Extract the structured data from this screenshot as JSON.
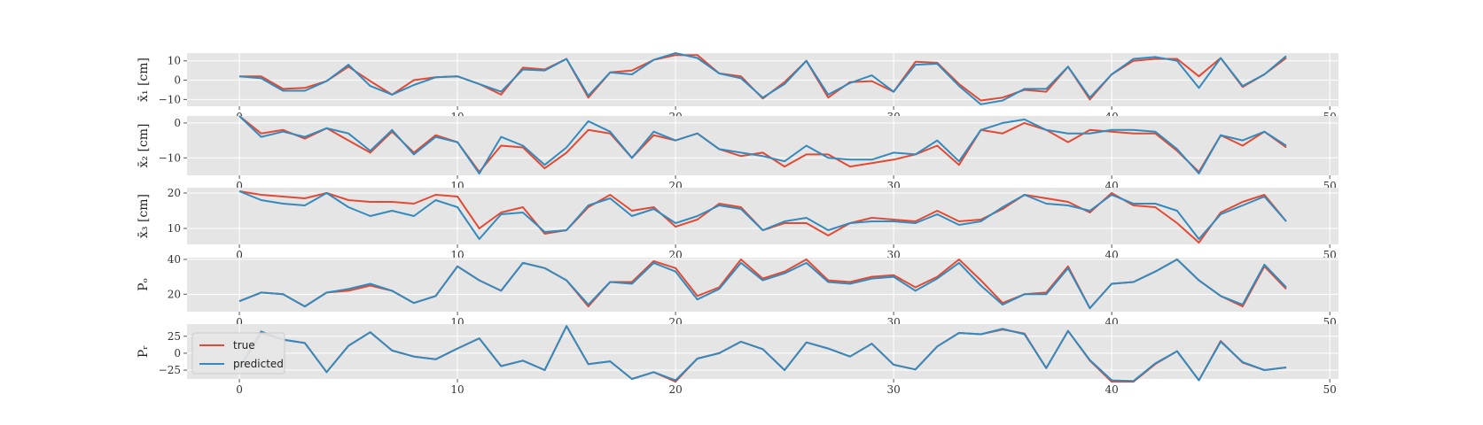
{
  "chart_data": {
    "type": "line",
    "xlim": [
      -2.4,
      50.4
    ],
    "xticks": [
      0,
      10,
      20,
      30,
      40,
      50
    ],
    "x": [
      0,
      1,
      2,
      3,
      4,
      5,
      6,
      7,
      8,
      9,
      10,
      11,
      12,
      13,
      14,
      15,
      16,
      17,
      18,
      19,
      20,
      21,
      22,
      23,
      24,
      25,
      26,
      27,
      28,
      29,
      30,
      31,
      32,
      33,
      34,
      35,
      36,
      37,
      38,
      39,
      40,
      41,
      42,
      43,
      44,
      45,
      46,
      47,
      48
    ],
    "grid": true,
    "legend": {
      "placement": "lower-left",
      "panel": 5,
      "entries": [
        "true",
        "predicted"
      ]
    },
    "colors": {
      "true": "#E24A33",
      "predicted": "#348ABD",
      "panel_bg": "#E5E5E5",
      "grid": "#FFFFFF"
    },
    "panels": [
      {
        "ylabel": "x̄₁ [cm]",
        "ylim": [
          -13.5,
          14
        ],
        "yticks": [
          -10,
          0,
          10
        ],
        "series": [
          {
            "name": "true",
            "values": [
              2,
              2,
              -4.5,
              -4,
              -0.5,
              7,
              -0.5,
              -7.5,
              0,
              1.5,
              2,
              -2,
              -7.5,
              6.5,
              5.5,
              11,
              -9,
              4,
              5,
              10.5,
              13,
              13,
              3.5,
              2,
              -9.5,
              -1,
              10,
              -9,
              -1,
              -0.5,
              -6,
              9.5,
              9,
              -2,
              -10.5,
              -9,
              -5,
              -6,
              7,
              -10,
              3,
              10,
              11,
              11,
              2,
              11.5,
              -3.5,
              3,
              11.5
            ]
          },
          {
            "name": "predicted",
            "values": [
              2,
              1,
              -5.5,
              -5.5,
              -0.5,
              8,
              -3,
              -7.5,
              -2.5,
              1.5,
              2,
              -2,
              -6,
              5.5,
              5,
              11,
              -8,
              4,
              3,
              10.5,
              14,
              11.5,
              3.5,
              1,
              -9,
              -2,
              10,
              -7.5,
              -1.5,
              2.5,
              -6,
              8,
              8.5,
              -3,
              -12.5,
              -10.5,
              -4.5,
              -4.5,
              7,
              -9,
              3,
              11,
              12,
              10,
              -4,
              11.5,
              -3,
              3,
              12.5
            ]
          }
        ]
      },
      {
        "ylabel": "x̄₂ [cm]",
        "ylim": [
          -15,
          2
        ],
        "yticks": [
          -10,
          0
        ],
        "series": [
          {
            "name": "true",
            "values": [
              2,
              -3,
              -2,
              -4.5,
              -1.5,
              -5,
              -8.5,
              -2.5,
              -8.5,
              -3.5,
              -5.5,
              -14,
              -6.5,
              -7,
              -13,
              -8.5,
              -2,
              -3,
              -10,
              -3.5,
              -5,
              -3,
              -7.5,
              -9.5,
              -8.5,
              -12.5,
              -9,
              -9,
              -12.5,
              -11.5,
              -10.5,
              -9,
              -6.5,
              -12,
              -2,
              -3,
              0,
              -2,
              -5.5,
              -2,
              -2.5,
              -3,
              -3,
              -8,
              -14,
              -3.5,
              -6.5,
              -2.5,
              -7
            ]
          },
          {
            "name": "predicted",
            "values": [
              2,
              -4,
              -2.5,
              -4,
              -1.5,
              -3,
              -8,
              -2,
              -9,
              -4,
              -5.5,
              -14.5,
              -4,
              -6.5,
              -12,
              -7,
              0.5,
              -2.5,
              -10,
              -2.5,
              -5,
              -3,
              -7.5,
              -8.5,
              -9.5,
              -11,
              -6.5,
              -10,
              -10.5,
              -10.5,
              -8.5,
              -9,
              -5,
              -11,
              -2,
              0,
              1,
              -2,
              -3,
              -3,
              -2,
              -2,
              -2.5,
              -7.5,
              -14.5,
              -3.5,
              -5,
              -2.5,
              -6.5
            ]
          }
        ]
      },
      {
        "ylabel": "x̄₃ [cm]",
        "ylim": [
          5.5,
          21.5
        ],
        "yticks": [
          10,
          20
        ],
        "series": [
          {
            "name": "true",
            "values": [
              20.5,
              19.5,
              19,
              18.5,
              20,
              18,
              17.5,
              17.5,
              17,
              19.5,
              19,
              10,
              14.5,
              16,
              8.5,
              9.5,
              16,
              19.5,
              15,
              16,
              10.5,
              12.5,
              17,
              16,
              9.5,
              11.5,
              11.5,
              8,
              11.5,
              13,
              12.5,
              12,
              15,
              12,
              12.5,
              15.5,
              19.5,
              18.5,
              17.5,
              14.5,
              20,
              16.5,
              16,
              11.5,
              6,
              14.5,
              17.5,
              19.5,
              12
            ]
          },
          {
            "name": "predicted",
            "values": [
              20.5,
              18,
              17,
              16.5,
              20,
              16,
              13.5,
              15,
              13.5,
              18,
              16,
              7,
              14,
              14.5,
              9,
              9.5,
              16.5,
              18.5,
              13.5,
              15.5,
              11.5,
              13.5,
              16.5,
              15.5,
              9.5,
              12,
              13,
              9.5,
              11.5,
              12,
              12,
              11.5,
              14,
              11,
              12,
              16,
              19.5,
              17,
              16.5,
              15,
              19.5,
              17,
              17,
              15,
              7,
              14,
              16.5,
              19,
              12
            ]
          }
        ]
      },
      {
        "ylabel": "Pₒ",
        "ylim": [
          10,
          41
        ],
        "yticks": [
          20,
          40
        ],
        "series": [
          {
            "name": "true",
            "values": [
              16,
              21,
              20,
              13,
              21,
              22,
              25,
              22,
              15,
              19,
              36,
              28,
              22,
              38,
              35,
              28,
              13,
              27,
              27,
              39,
              35,
              19,
              24,
              40,
              29,
              33,
              40,
              28,
              27,
              30,
              31,
              24,
              30,
              40,
              28,
              15,
              20,
              21,
              36,
              12,
              26,
              27,
              33,
              40,
              28,
              19,
              13,
              36,
              23
            ]
          },
          {
            "name": "predicted",
            "values": [
              16,
              21,
              20,
              13,
              21,
              23,
              26,
              22,
              15,
              19,
              36,
              28,
              22,
              38,
              35,
              28,
              14,
              27,
              26,
              38,
              33,
              17,
              23,
              38,
              28,
              32,
              38,
              27,
              26,
              29,
              30,
              22,
              29,
              38,
              25,
              14,
              20,
              20,
              35,
              12,
              26,
              27,
              33,
              40,
              28,
              19,
              14,
              37,
              24
            ]
          }
        ]
      },
      {
        "ylabel": "Pᵣ",
        "ylim": [
          -38,
          43
        ],
        "yticks": [
          -25,
          0,
          25
        ],
        "series": [
          {
            "name": "true",
            "values": [
              -22,
              30,
              20,
              15,
              -28,
              11,
              31,
              4,
              -5,
              -9,
              7,
              22,
              -19,
              -11,
              -25,
              40,
              -16,
              -12,
              -38,
              -28,
              -42,
              -8,
              0,
              17,
              6,
              -25,
              16,
              7,
              -5,
              14,
              -17,
              -24,
              10,
              30,
              28,
              35,
              29,
              -22,
              33,
              -11,
              -42,
              -42,
              -16,
              3,
              -40,
              18,
              -14,
              -25,
              -21
            ]
          },
          {
            "name": "predicted",
            "values": [
              -22,
              32,
              20,
              15,
              -28,
              11,
              31,
              4,
              -5,
              -9,
              7,
              22,
              -19,
              -11,
              -25,
              40,
              -16,
              -12,
              -38,
              -28,
              -40,
              -8,
              0,
              17,
              6,
              -25,
              16,
              7,
              -5,
              14,
              -17,
              -24,
              10,
              30,
              28,
              36,
              28,
              -22,
              33,
              -10,
              -40,
              -41,
              -15,
              3,
              -40,
              17,
              -13,
              -25,
              -21
            ]
          }
        ]
      }
    ]
  }
}
